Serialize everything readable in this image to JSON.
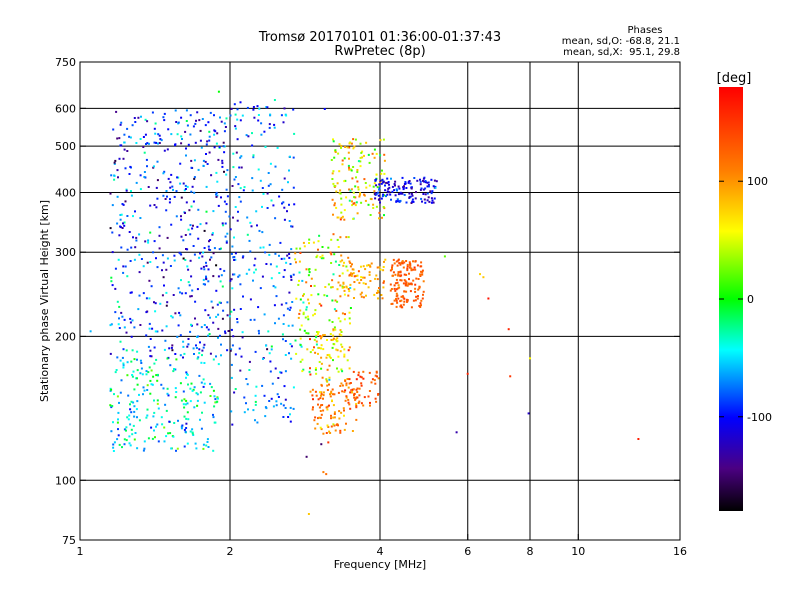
{
  "chart_data": {
    "type": "scatter",
    "title": "Tromsø 20170101 01:36:00-01:37:43",
    "subtitle": "RwPretec (8p)",
    "xlabel": "Frequency [MHz]",
    "ylabel": "Stationary phase Virtual Height [km]",
    "x_scale": "log",
    "y_scale": "log",
    "xlim": [
      1,
      16
    ],
    "ylim": [
      75,
      750
    ],
    "x_ticks": [
      1,
      2,
      4,
      6,
      8,
      10,
      16
    ],
    "x_tick_labels": [
      "1",
      "2",
      "4",
      "6",
      "8",
      "10",
      "16"
    ],
    "y_ticks": [
      75,
      100,
      200,
      300,
      400,
      500,
      600,
      750
    ],
    "y_tick_labels": [
      "75",
      "100",
      "200",
      "300",
      "400",
      "500",
      "600",
      "750"
    ],
    "x_gridlines": [
      2,
      4,
      6,
      8,
      10
    ],
    "y_gridlines": [
      100,
      200,
      300,
      400,
      500,
      600
    ],
    "grid": true,
    "stats": {
      "heading": "Phases",
      "line_o": "mean, sd,O: -68.8, 21.1",
      "line_x": "mean, sd,X:  95.1, 29.8"
    },
    "colorbar": {
      "unit": "[deg]",
      "range": [
        -180,
        180
      ],
      "ticks": [
        100,
        0,
        -100
      ],
      "tick_labels": [
        "100",
        "0",
        "-100"
      ]
    },
    "clusters": [
      {
        "x0": 1.15,
        "x1": 2.0,
        "h0": 180,
        "h1": 600,
        "phase": -90,
        "phase_sd": 35,
        "count": 520
      },
      {
        "x0": 1.15,
        "x1": 1.9,
        "h0": 115,
        "h1": 180,
        "phase": -40,
        "phase_sd": 30,
        "count": 240
      },
      {
        "x0": 2.0,
        "x1": 2.7,
        "h0": 130,
        "h1": 640,
        "phase": -80,
        "phase_sd": 30,
        "count": 280
      },
      {
        "x0": 2.7,
        "x1": 3.5,
        "h0": 160,
        "h1": 330,
        "phase": 60,
        "phase_sd": 50,
        "count": 180
      },
      {
        "x0": 2.9,
        "x1": 3.6,
        "h0": 125,
        "h1": 160,
        "phase": 110,
        "phase_sd": 25,
        "count": 110
      },
      {
        "x0": 3.2,
        "x1": 4.1,
        "h0": 350,
        "h1": 520,
        "phase": 60,
        "phase_sd": 40,
        "count": 150
      },
      {
        "x0": 3.9,
        "x1": 5.2,
        "h0": 380,
        "h1": 430,
        "phase": -110,
        "phase_sd": 20,
        "count": 140
      },
      {
        "x0": 4.2,
        "x1": 4.9,
        "h0": 230,
        "h1": 290,
        "phase": 130,
        "phase_sd": 12,
        "count": 150
      },
      {
        "x0": 3.3,
        "x1": 4.1,
        "h0": 240,
        "h1": 290,
        "phase": 95,
        "phase_sd": 18,
        "count": 80
      },
      {
        "x0": 3.4,
        "x1": 4.0,
        "h0": 140,
        "h1": 170,
        "phase": 140,
        "phase_sd": 20,
        "count": 50
      },
      {
        "x0": 3.0,
        "x1": 3.4,
        "h0": 180,
        "h1": 205,
        "phase": 70,
        "phase_sd": 20,
        "count": 35
      }
    ],
    "scattered_points": [
      {
        "x": 13.2,
        "y": 122,
        "phase": 165
      },
      {
        "x": 7.95,
        "y": 138,
        "phase": -120
      },
      {
        "x": 7.3,
        "y": 165,
        "phase": 150
      },
      {
        "x": 7.25,
        "y": 207,
        "phase": 160
      },
      {
        "x": 8.0,
        "y": 180,
        "phase": 60
      },
      {
        "x": 6.0,
        "y": 167,
        "phase": 160
      },
      {
        "x": 5.7,
        "y": 126,
        "phase": -130
      },
      {
        "x": 6.6,
        "y": 240,
        "phase": 170
      },
      {
        "x": 6.35,
        "y": 270,
        "phase": 75
      },
      {
        "x": 6.45,
        "y": 266,
        "phase": 80
      },
      {
        "x": 5.4,
        "y": 294,
        "phase": 20
      },
      {
        "x": 1.05,
        "y": 205,
        "phase": -60
      },
      {
        "x": 2.88,
        "y": 85,
        "phase": 80
      },
      {
        "x": 3.08,
        "y": 104,
        "phase": 110
      },
      {
        "x": 3.12,
        "y": 103,
        "phase": 120
      },
      {
        "x": 2.85,
        "y": 112,
        "phase": -150
      },
      {
        "x": 3.05,
        "y": 119,
        "phase": -150
      },
      {
        "x": 3.15,
        "y": 120,
        "phase": 150
      },
      {
        "x": 3.1,
        "y": 598,
        "phase": -100
      },
      {
        "x": 1.9,
        "y": 650,
        "phase": 0
      }
    ],
    "colors": {
      "frame": "#000000",
      "grid": "#000000",
      "background": "#ffffff"
    }
  }
}
